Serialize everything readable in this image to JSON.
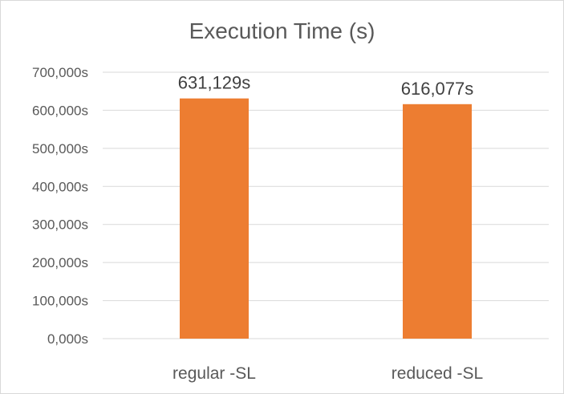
{
  "chart_data": {
    "type": "bar",
    "title": "Execution Time (s)",
    "categories": [
      "regular -SL",
      "reduced -SL"
    ],
    "values": [
      631129,
      616077
    ],
    "data_labels": [
      "631,129s",
      "616,077s"
    ],
    "xlabel": "",
    "ylabel": "",
    "ylim": [
      0,
      700000
    ],
    "yticks": [
      0,
      100000,
      200000,
      300000,
      400000,
      500000,
      600000,
      700000
    ],
    "ytick_labels": [
      "0,000s",
      "100,000s",
      "200,000s",
      "300,000s",
      "400,000s",
      "500,000s",
      "600,000s",
      "700,000s"
    ],
    "grid": true,
    "legend": "none",
    "bar_color": "#ED7D31",
    "grid_color": "#D9D9D9"
  }
}
